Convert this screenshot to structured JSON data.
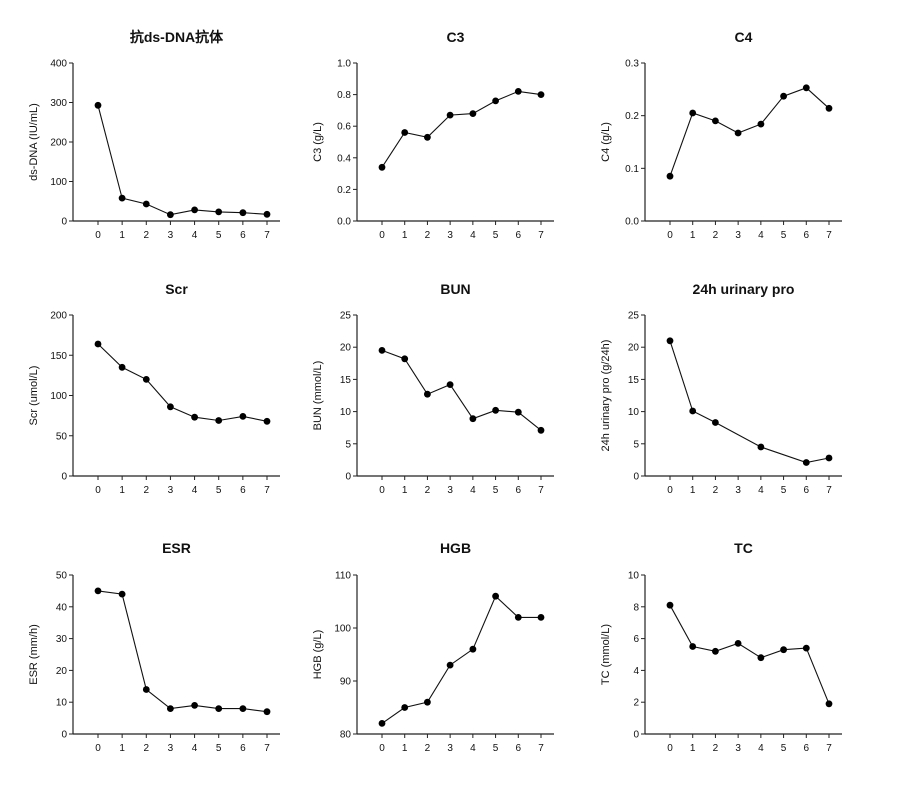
{
  "chart_data": [
    {
      "type": "line",
      "title": "抗ds-DNA抗体",
      "xlabel": "",
      "ylabel": "ds-DNA (IU/mL)",
      "x": [
        0,
        1,
        2,
        3,
        4,
        5,
        6,
        7
      ],
      "values": [
        293,
        58,
        43,
        16,
        28,
        23,
        21,
        17
      ],
      "ylim": [
        0,
        400
      ],
      "xticks": [
        "0",
        "1",
        "2",
        "3",
        "4",
        "5",
        "6",
        "7"
      ],
      "yticks": [
        "0",
        "100",
        "200",
        "300",
        "400"
      ]
    },
    {
      "type": "line",
      "title": "C3",
      "xlabel": "",
      "ylabel": "C3 (g/L)",
      "x": [
        0,
        1,
        2,
        3,
        4,
        5,
        6,
        7
      ],
      "values": [
        0.34,
        0.56,
        0.53,
        0.67,
        0.68,
        0.76,
        0.82,
        0.8
      ],
      "ylim": [
        0,
        1.0
      ],
      "xticks": [
        "0",
        "1",
        "2",
        "3",
        "4",
        "5",
        "6",
        "7"
      ],
      "yticks": [
        "0.0",
        "0.2",
        "0.4",
        "0.6",
        "0.8",
        "1.0"
      ]
    },
    {
      "type": "line",
      "title": "C4",
      "xlabel": "",
      "ylabel": "C4 (g/L)",
      "x": [
        0,
        1,
        2,
        3,
        4,
        5,
        6,
        7
      ],
      "values": [
        0.085,
        0.205,
        0.19,
        0.167,
        0.184,
        0.237,
        0.253,
        0.214
      ],
      "ylim": [
        0,
        0.3
      ],
      "xticks": [
        "0",
        "1",
        "2",
        "3",
        "4",
        "5",
        "6",
        "7"
      ],
      "yticks": [
        "0.0",
        "0.1",
        "0.2",
        "0.3"
      ]
    },
    {
      "type": "line",
      "title": "Scr",
      "xlabel": "",
      "ylabel": "Scr (umol/L)",
      "x": [
        0,
        1,
        2,
        3,
        4,
        5,
        6,
        7
      ],
      "values": [
        164,
        135,
        120,
        86,
        73,
        69,
        74,
        68
      ],
      "ylim": [
        0,
        200
      ],
      "xticks": [
        "0",
        "1",
        "2",
        "3",
        "4",
        "5",
        "6",
        "7"
      ],
      "yticks": [
        "0",
        "50",
        "100",
        "150",
        "200"
      ]
    },
    {
      "type": "line",
      "title": "BUN",
      "xlabel": "",
      "ylabel": "BUN (mmol/L)",
      "x": [
        0,
        1,
        2,
        3,
        4,
        5,
        6,
        7
      ],
      "values": [
        19.5,
        18.2,
        12.7,
        14.2,
        8.9,
        10.2,
        9.9,
        7.1
      ],
      "ylim": [
        0,
        25
      ],
      "xticks": [
        "0",
        "1",
        "2",
        "3",
        "4",
        "5",
        "6",
        "7"
      ],
      "yticks": [
        "0",
        "5",
        "10",
        "15",
        "20",
        "25"
      ]
    },
    {
      "type": "line",
      "title": "24h urinary pro",
      "xlabel": "",
      "ylabel": "24h urinary pro (g/24h)",
      "x": [
        0,
        1,
        2,
        4,
        6,
        7
      ],
      "values": [
        21.0,
        10.1,
        8.3,
        4.5,
        2.1,
        2.8
      ],
      "ylim": [
        0,
        25
      ],
      "xticks": [
        "0",
        "1",
        "2",
        "3",
        "4",
        "5",
        "6",
        "7"
      ],
      "yticks": [
        "0",
        "5",
        "10",
        "15",
        "20",
        "25"
      ]
    },
    {
      "type": "line",
      "title": "ESR",
      "xlabel": "",
      "ylabel": "ESR (mm/h)",
      "x": [
        0,
        1,
        2,
        3,
        4,
        5,
        6,
        7
      ],
      "values": [
        45,
        44,
        14,
        8,
        9,
        8,
        8,
        7
      ],
      "ylim": [
        0,
        50
      ],
      "xticks": [
        "0",
        "1",
        "2",
        "3",
        "4",
        "5",
        "6",
        "7"
      ],
      "yticks": [
        "0",
        "10",
        "20",
        "30",
        "40",
        "50"
      ]
    },
    {
      "type": "line",
      "title": "HGB",
      "xlabel": "",
      "ylabel": "HGB (g/L)",
      "x": [
        0,
        1,
        2,
        3,
        4,
        5,
        6,
        7
      ],
      "values": [
        82,
        85,
        86,
        93,
        96,
        106,
        102,
        102
      ],
      "ylim": [
        80,
        110
      ],
      "xticks": [
        "0",
        "1",
        "2",
        "3",
        "4",
        "5",
        "6",
        "7"
      ],
      "yticks": [
        "80",
        "90",
        "100",
        "110"
      ]
    },
    {
      "type": "line",
      "title": "TC",
      "xlabel": "",
      "ylabel": "TC (mmol/L)",
      "x": [
        0,
        1,
        2,
        3,
        4,
        5,
        6,
        7
      ],
      "values": [
        8.1,
        5.5,
        5.2,
        5.7,
        4.8,
        5.3,
        5.4,
        1.9
      ],
      "ylim": [
        0,
        10
      ],
      "xticks": [
        "0",
        "1",
        "2",
        "3",
        "4",
        "5",
        "6",
        "7"
      ],
      "yticks": [
        "0",
        "2",
        "4",
        "6",
        "8",
        "10"
      ]
    }
  ]
}
